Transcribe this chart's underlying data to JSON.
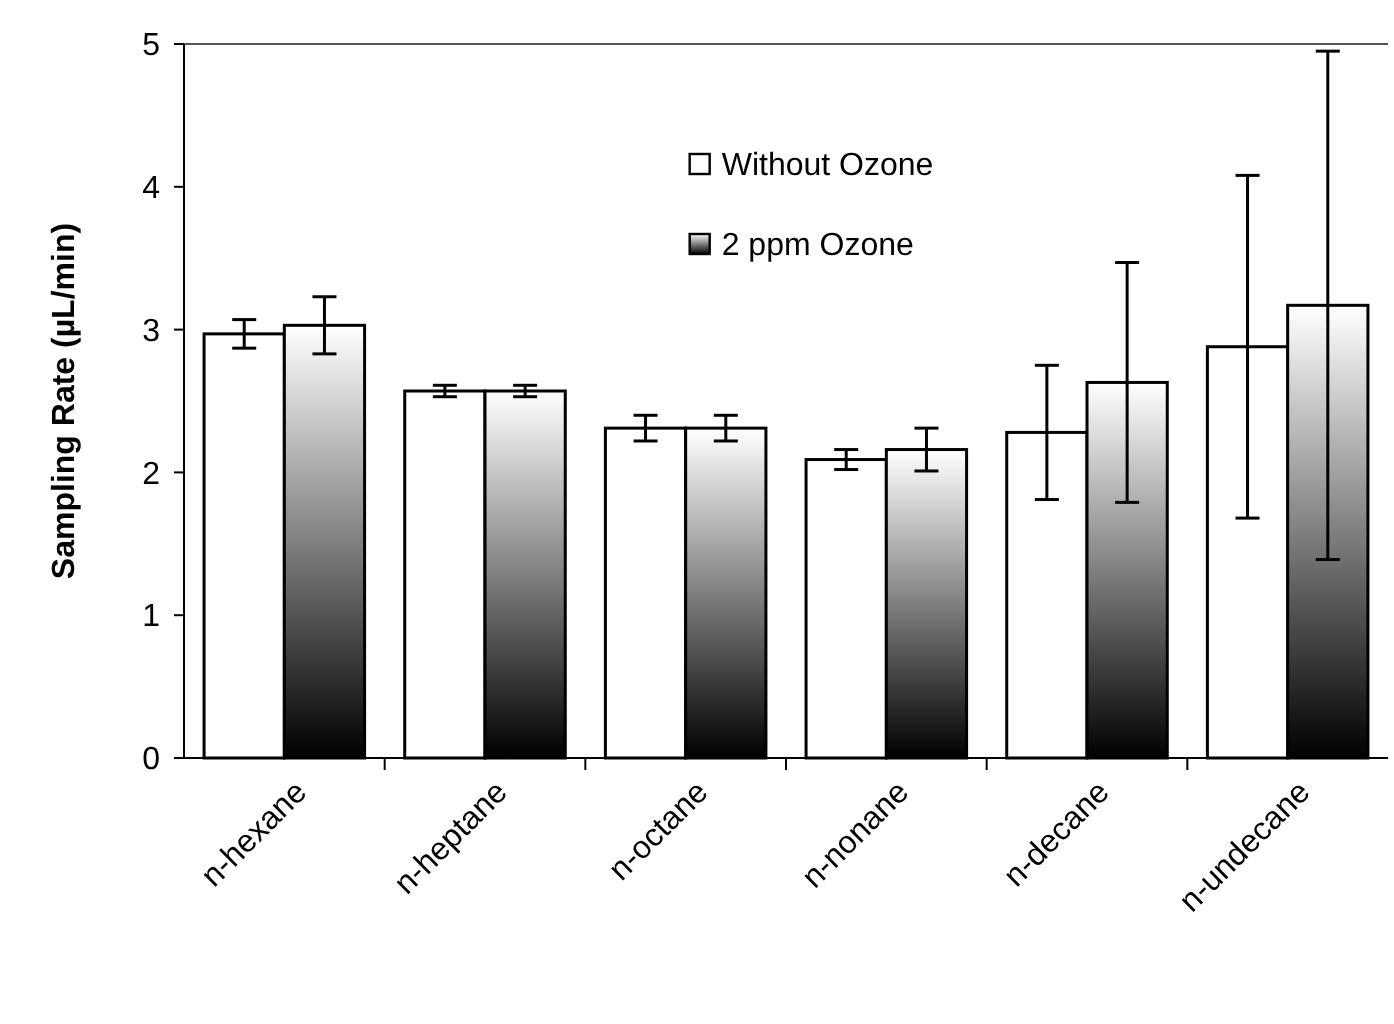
{
  "chart_data": {
    "type": "bar",
    "ylabel": "Sampling Rate (µL/min)",
    "categories": [
      "n-hexane",
      "n-heptane",
      "n-octane",
      "n-nonane",
      "n-decane",
      "n-undecane"
    ],
    "series": [
      {
        "name": "Without Ozone",
        "color": "#ffffff",
        "values": [
          2.97,
          2.57,
          2.31,
          2.09,
          2.28,
          2.88
        ],
        "errors": [
          0.1,
          0.04,
          0.09,
          0.07,
          0.47,
          1.2
        ]
      },
      {
        "name": "2 ppm Ozone",
        "color": "#000000",
        "values": [
          3.03,
          2.57,
          2.31,
          2.16,
          2.63,
          3.17
        ],
        "errors": [
          0.2,
          0.04,
          0.09,
          0.15,
          0.84,
          1.78
        ]
      }
    ],
    "ylim": [
      0,
      5
    ],
    "yticks": [
      0,
      1,
      2,
      3,
      4,
      5
    ],
    "grid": false,
    "legend": "top"
  }
}
